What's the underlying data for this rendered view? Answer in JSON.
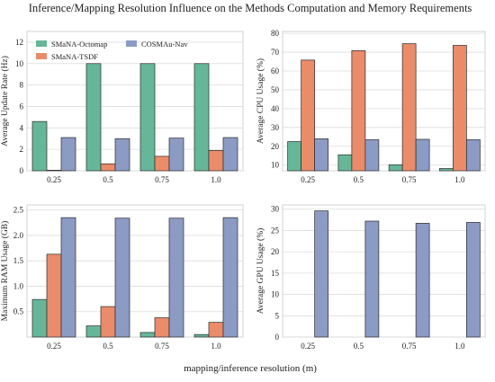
{
  "title": "Inference/Mapping Resolution Influence on the Methods Computation and Memory Requirements",
  "xlabel": "mapping/inference resolution (m)",
  "colors": {
    "SMaNA-Octomap": "#66b799",
    "SMaNA-TSDF": "#ea8c6a",
    "COSMAu-Nav": "#8c9bc4",
    "grid": "#dcdcdc",
    "edge": "#2b2b2b"
  },
  "chart_data": [
    {
      "type": "bar",
      "categories": [
        "0.25",
        "0.5",
        "0.75",
        "1.0"
      ],
      "ylabel": "Average Update Rate (Hz)",
      "ylim": [
        0,
        13
      ],
      "yticks": [
        0,
        2,
        4,
        6,
        8,
        10,
        12
      ],
      "grid": true,
      "legend": "top-left",
      "series": [
        {
          "name": "SMaNA-Octomap",
          "values": [
            4.6,
            10.0,
            10.0,
            10.0
          ]
        },
        {
          "name": "SMaNA-TSDF",
          "values": [
            0.05,
            0.65,
            1.35,
            1.9
          ]
        },
        {
          "name": "COSMAu-Nav",
          "values": [
            3.1,
            3.0,
            3.05,
            3.1
          ]
        }
      ]
    },
    {
      "type": "bar",
      "categories": [
        "0.25",
        "0.5",
        "0.75",
        "1.0"
      ],
      "ylabel": "Average CPU Usage (%)",
      "ylim": [
        7,
        81
      ],
      "yticks": [
        10,
        20,
        30,
        40,
        50,
        60,
        70,
        80
      ],
      "grid": true,
      "series": [
        {
          "name": "SMaNA-Octomap",
          "values": [
            22.5,
            15.5,
            10.2,
            8.2
          ]
        },
        {
          "name": "SMaNA-TSDF",
          "values": [
            65.8,
            70.8,
            74.5,
            73.6
          ]
        },
        {
          "name": "COSMAu-Nav",
          "values": [
            24.0,
            23.5,
            23.7,
            23.5
          ]
        }
      ]
    },
    {
      "type": "bar",
      "categories": [
        "0.25",
        "0.5",
        "0.75",
        "1.0"
      ],
      "ylabel": "Maximum RAM Usage (GB)",
      "ylim": [
        0,
        2.6
      ],
      "yticks": [
        0.5,
        1.0,
        1.5,
        2.0,
        2.5
      ],
      "grid": true,
      "series": [
        {
          "name": "SMaNA-Octomap",
          "values": [
            0.74,
            0.22,
            0.09,
            0.05
          ]
        },
        {
          "name": "SMaNA-TSDF",
          "values": [
            1.63,
            0.6,
            0.38,
            0.29
          ]
        },
        {
          "name": "COSMAu-Nav",
          "values": [
            2.35,
            2.34,
            2.34,
            2.35
          ]
        }
      ]
    },
    {
      "type": "bar",
      "categories": [
        "0.25",
        "0.5",
        "0.75",
        "1.0"
      ],
      "ylabel": "Average GPU Usage (%)",
      "ylim": [
        0,
        31
      ],
      "yticks": [
        0,
        5,
        10,
        15,
        20,
        25,
        30
      ],
      "grid": true,
      "series": [
        {
          "name": "SMaNA-Octomap",
          "values": [
            0,
            0,
            0,
            0
          ]
        },
        {
          "name": "SMaNA-TSDF",
          "values": [
            0,
            0,
            0,
            0
          ]
        },
        {
          "name": "COSMAu-Nav",
          "values": [
            29.6,
            27.2,
            26.7,
            26.9
          ]
        }
      ]
    }
  ]
}
